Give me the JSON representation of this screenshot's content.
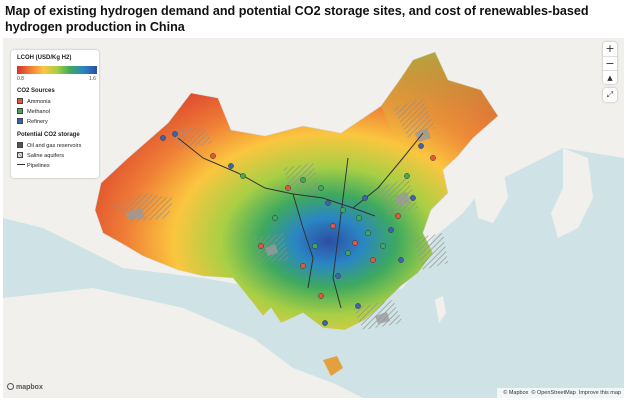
{
  "page": {
    "title": "Map of existing hydrogen demand and potential CO2 storage sites, and cost of renewables-based hydrogen production in China"
  },
  "legend": {
    "title": "LCOH (USD/Kg H2)",
    "scale_min": "0.8",
    "scale_max": "1.6",
    "co2_sources_heading": "CO2 Sources",
    "co2_sources": [
      {
        "label": "Ammonia",
        "color": "#e8553f"
      },
      {
        "label": "Methanol",
        "color": "#3daa5c"
      },
      {
        "label": "Refinery",
        "color": "#3d62b3"
      }
    ],
    "storage_heading": "Potential CO2 storage",
    "storage": [
      {
        "label": "Oil and gas reservoirs",
        "swatch": "dark-grey"
      },
      {
        "label": "Saline aquifers",
        "swatch": "hatched"
      },
      {
        "label": "Pipelines",
        "swatch": "line"
      }
    ]
  },
  "colors": {
    "sea": "#cfe3e6",
    "land": "#f1f0ec",
    "cost_low": "#2c4ea3",
    "cost_high": "#d7302c"
  },
  "controls": {
    "zoom_in": "+",
    "zoom_out": "−",
    "reset_north": "▲",
    "fullscreen": "⤢"
  },
  "logo": {
    "label": "mapbox"
  },
  "attribution": {
    "mapbox": "© Mapbox",
    "osm": "© OpenStreetMap",
    "improve": "Improve this map"
  }
}
